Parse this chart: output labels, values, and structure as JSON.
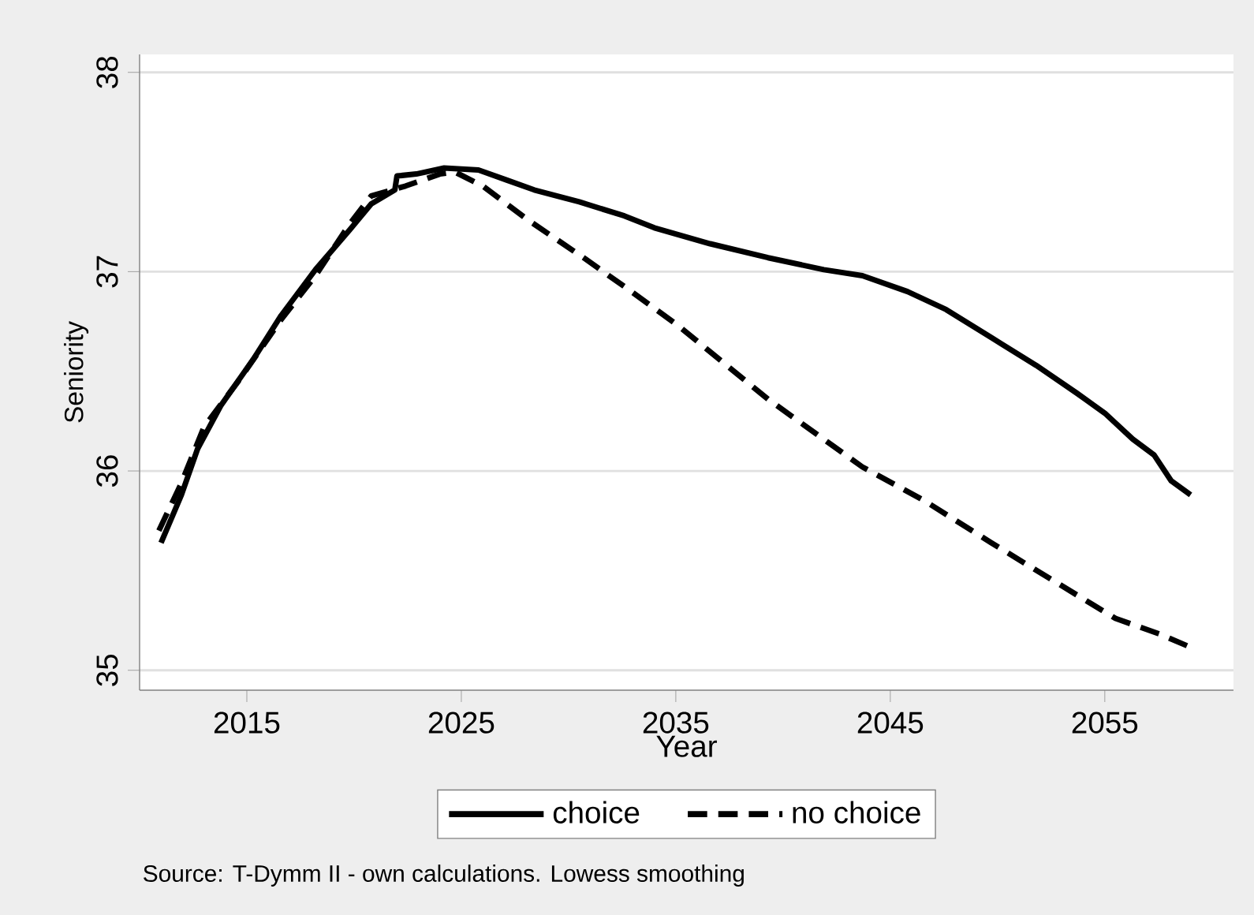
{
  "chart_data": {
    "type": "line",
    "xlabel": "Year",
    "ylabel": "Seniority",
    "annotations": [
      "Source: T-Dymm II - own calculations. Lowess smoothing"
    ],
    "xlim": [
      2010,
      2061
    ],
    "ylim": [
      34.9,
      38.09
    ],
    "xticks": [
      2015,
      2025,
      2035,
      2045,
      2055
    ],
    "yticks": [
      35,
      36,
      37,
      38
    ],
    "grid": "y",
    "legend": "bottom",
    "series": [
      {
        "name": "choice",
        "color": "#000000",
        "line_style": "solid",
        "x": [
          2011.0,
          2011.95,
          2012.7,
          2013.8,
          2015.3,
          2016.6,
          2018.2,
          2019.8,
          2020.8,
          2021.9,
          2022.0,
          2022.9,
          2024.2,
          2025.8,
          2027.1,
          2028.4,
          2030.5,
          2032.6,
          2034.0,
          2036.6,
          2039.3,
          2041.9,
          2043.7,
          2045.8,
          2047.6,
          2049.7,
          2051.8,
          2053.7,
          2055.0,
          2056.3,
          2057.3,
          2058.1,
          2059.0
        ],
        "values": [
          35.64,
          35.88,
          36.11,
          36.33,
          36.56,
          36.78,
          37.01,
          37.21,
          37.34,
          37.41,
          37.48,
          37.49,
          37.52,
          37.51,
          37.46,
          37.41,
          37.35,
          37.28,
          37.22,
          37.14,
          37.07,
          37.01,
          36.98,
          36.9,
          36.81,
          36.67,
          36.53,
          36.39,
          36.29,
          36.16,
          36.08,
          35.95,
          35.88
        ]
      },
      {
        "name": "no choice",
        "color": "#000000",
        "line_style": "dashed",
        "x": [
          2010.9,
          2011.95,
          2013.0,
          2014.6,
          2016.6,
          2018.2,
          2019.8,
          2020.8,
          2022.4,
          2024.0,
          2024.7,
          2026.0,
          2028.1,
          2030.7,
          2032.8,
          2035.1,
          2039.3,
          2043.7,
          2046.6,
          2049.7,
          2052.9,
          2055.5,
          2057.6,
          2058.9
        ],
        "values": [
          35.7,
          35.94,
          36.22,
          36.45,
          36.76,
          36.98,
          37.24,
          37.38,
          37.43,
          37.49,
          37.5,
          37.43,
          37.26,
          37.07,
          36.91,
          36.73,
          36.36,
          36.02,
          35.85,
          35.64,
          35.43,
          35.26,
          35.18,
          35.12
        ]
      }
    ]
  }
}
